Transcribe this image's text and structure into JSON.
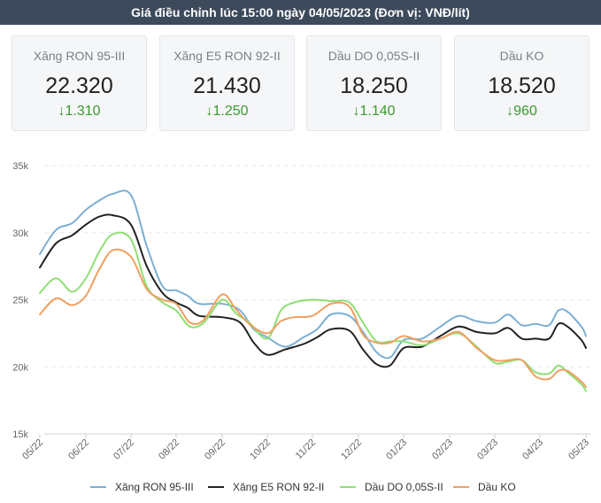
{
  "header": {
    "title": "Giá điều chỉnh lúc 15:00 ngày 04/05/2023 (Đơn vị: VNĐ/lít)"
  },
  "cards": [
    {
      "name": "Xăng RON 95-III",
      "price": "22.320",
      "change": "↓1.310"
    },
    {
      "name": "Xăng E5 RON 92-II",
      "price": "21.430",
      "change": "↓1.250"
    },
    {
      "name": "Dầu DO 0,05S-II",
      "price": "18.250",
      "change": "↓1.140"
    },
    {
      "name": "Dầu KO",
      "price": "18.520",
      "change": "↓960"
    }
  ],
  "chart_data": {
    "type": "line",
    "title": "",
    "xlabel": "",
    "ylabel": "",
    "ylim": [
      15000,
      35000
    ],
    "y_ticks": [
      15000,
      20000,
      25000,
      30000,
      35000
    ],
    "y_tick_labels": [
      "15k",
      "20k",
      "25k",
      "30k",
      "35k"
    ],
    "x_range": [
      0,
      12
    ],
    "x_ticks": [
      0,
      1,
      2,
      3,
      4,
      5,
      6,
      7,
      8,
      9,
      10,
      11,
      12
    ],
    "x_tick_labels": [
      "05/22",
      "06/22",
      "07/22",
      "08/22",
      "09/22",
      "10/22",
      "11/22",
      "12/22",
      "01/23",
      "02/23",
      "03/23",
      "04/23",
      "05/23"
    ],
    "grid": true,
    "legend_position": "bottom",
    "series": [
      {
        "name": "Xăng RON 95-III",
        "color": "#7bafd4",
        "x": [
          0,
          0.35,
          0.7,
          1.0,
          1.3,
          1.6,
          2.0,
          2.35,
          2.7,
          3.0,
          3.25,
          3.5,
          4.0,
          4.4,
          4.7,
          5.0,
          5.4,
          5.8,
          6.1,
          6.4,
          6.8,
          7.1,
          7.4,
          7.7,
          8.0,
          8.4,
          8.8,
          9.2,
          9.6,
          10.0,
          10.3,
          10.6,
          10.9,
          11.2,
          11.4,
          11.6,
          11.9,
          12.0
        ],
        "values": [
          28400,
          30200,
          30700,
          31700,
          32400,
          32900,
          32800,
          29000,
          26000,
          25700,
          25300,
          24700,
          24700,
          24200,
          22800,
          22200,
          21500,
          22200,
          22800,
          23900,
          23800,
          22600,
          21100,
          20700,
          22000,
          22100,
          23000,
          23800,
          23400,
          23300,
          23900,
          23100,
          23200,
          23100,
          24200,
          24100,
          23000,
          22300
        ]
      },
      {
        "name": "Xăng E5 RON 92-II",
        "color": "#222222",
        "x": [
          0,
          0.35,
          0.7,
          1.0,
          1.3,
          1.6,
          2.0,
          2.35,
          2.7,
          3.0,
          3.25,
          3.5,
          4.0,
          4.4,
          4.7,
          5.0,
          5.4,
          5.8,
          6.1,
          6.4,
          6.8,
          7.1,
          7.4,
          7.7,
          8.0,
          8.4,
          8.8,
          9.2,
          9.6,
          10.0,
          10.3,
          10.6,
          10.9,
          11.2,
          11.4,
          11.6,
          11.9,
          12.0
        ],
        "values": [
          27400,
          29200,
          29800,
          30600,
          31200,
          31300,
          30600,
          27500,
          25500,
          24800,
          24400,
          23800,
          23700,
          23300,
          21800,
          20900,
          21300,
          21700,
          22200,
          22800,
          22700,
          21300,
          20200,
          20100,
          21400,
          21500,
          22300,
          23000,
          22600,
          22500,
          22900,
          22100,
          22100,
          22100,
          23200,
          23000,
          22000,
          21400
        ]
      },
      {
        "name": "Dầu DO 0,05S-II",
        "color": "#8fde74",
        "x": [
          0,
          0.35,
          0.7,
          1.0,
          1.3,
          1.6,
          2.0,
          2.35,
          2.7,
          3.0,
          3.3,
          3.6,
          4.0,
          4.3,
          4.6,
          5.0,
          5.3,
          5.6,
          6.0,
          6.4,
          6.8,
          7.1,
          7.4,
          7.7,
          8.0,
          8.4,
          8.8,
          9.2,
          9.6,
          10.0,
          10.3,
          10.6,
          10.9,
          11.2,
          11.4,
          11.6,
          11.9,
          12.0
        ],
        "values": [
          25500,
          26600,
          25600,
          26600,
          28600,
          29900,
          29500,
          26000,
          24800,
          24200,
          23000,
          23300,
          25000,
          24000,
          23300,
          22100,
          24200,
          24800,
          25000,
          24900,
          24800,
          23300,
          21900,
          21900,
          21900,
          21600,
          22100,
          22500,
          21500,
          20300,
          20400,
          20500,
          19600,
          19500,
          20100,
          19600,
          18700,
          18200
        ]
      },
      {
        "name": "Dầu KO",
        "color": "#f0a060",
        "x": [
          0,
          0.35,
          0.7,
          1.0,
          1.3,
          1.6,
          2.0,
          2.35,
          2.7,
          3.0,
          3.3,
          3.6,
          4.0,
          4.3,
          4.6,
          5.0,
          5.3,
          5.6,
          6.0,
          6.4,
          6.8,
          7.1,
          7.4,
          7.7,
          8.0,
          8.4,
          8.8,
          9.2,
          9.6,
          10.0,
          10.3,
          10.6,
          10.9,
          11.2,
          11.4,
          11.6,
          11.9,
          12.0
        ],
        "values": [
          23900,
          25100,
          24600,
          25300,
          27300,
          28700,
          28200,
          25800,
          25000,
          24700,
          23300,
          23500,
          25400,
          24300,
          23200,
          22500,
          23400,
          23700,
          23800,
          24700,
          24500,
          22400,
          21800,
          21800,
          22300,
          21900,
          22100,
          22600,
          21400,
          20500,
          20500,
          20500,
          19300,
          19100,
          19700,
          19700,
          18900,
          18500
        ]
      }
    ]
  }
}
